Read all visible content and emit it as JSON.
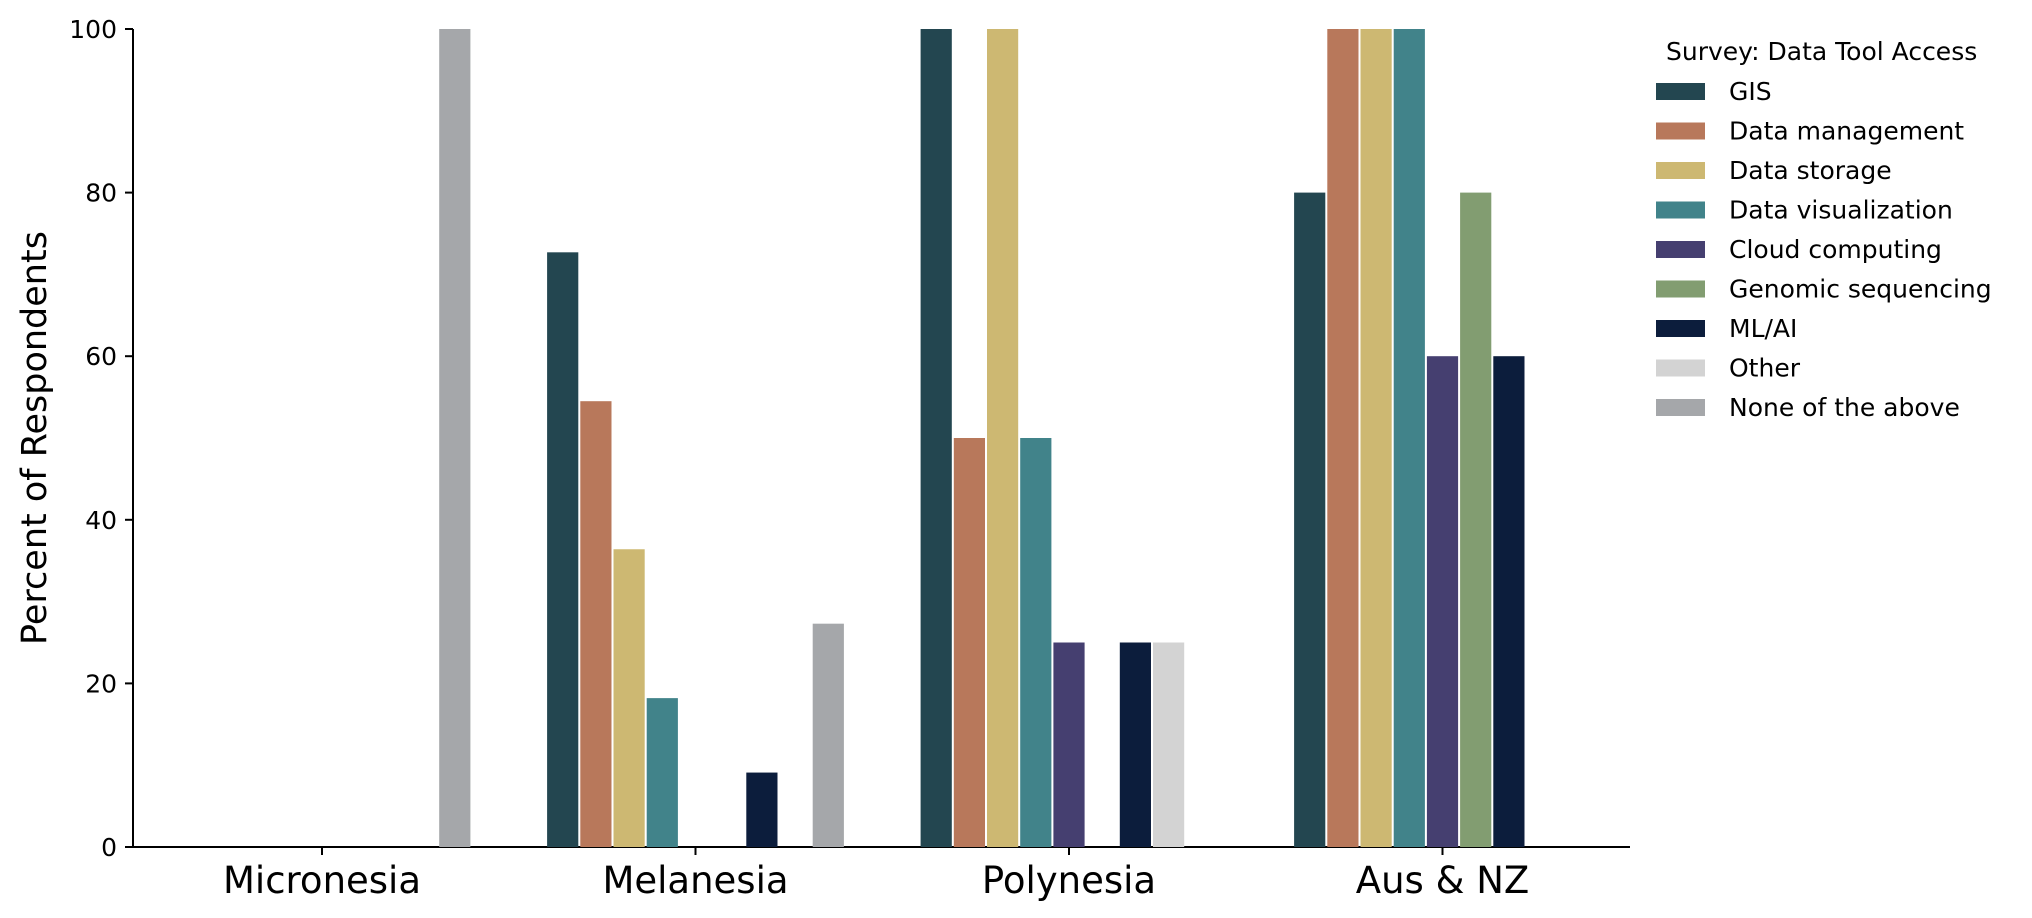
{
  "chart_data": {
    "type": "bar",
    "ylabel": "Percent of Respondents",
    "xlabel": "",
    "ylim": [
      0,
      100
    ],
    "yticks": [
      0,
      20,
      40,
      60,
      80,
      100
    ],
    "grid": false,
    "legend_title": "Survey: Data Tool Access",
    "legend_position": "top-right, outside plot",
    "categories": [
      "Micronesia",
      "Melanesia",
      "Polynesia",
      "Aus & NZ"
    ],
    "series": [
      {
        "name": "GIS",
        "color": "#234650",
        "values": [
          0,
          72.7,
          100,
          80
        ]
      },
      {
        "name": "Data management",
        "color": "#b8785b",
        "values": [
          0,
          54.5,
          50,
          100
        ]
      },
      {
        "name": "Data storage",
        "color": "#cdb872",
        "values": [
          0,
          36.4,
          100,
          100
        ]
      },
      {
        "name": "Data visualization",
        "color": "#41838a",
        "values": [
          0,
          18.2,
          50,
          100
        ]
      },
      {
        "name": "Cloud computing",
        "color": "#453f70",
        "values": [
          0,
          0,
          25,
          60
        ]
      },
      {
        "name": "Genomic sequencing",
        "color": "#829d71",
        "values": [
          0,
          0,
          0,
          80
        ]
      },
      {
        "name": "ML/AI",
        "color": "#0c1d3c",
        "values": [
          0,
          9.1,
          25,
          60
        ]
      },
      {
        "name": "Other",
        "color": "#d3d3d3",
        "values": [
          0,
          0,
          25,
          0
        ]
      },
      {
        "name": "None of the above",
        "color": "#a5a7aa",
        "values": [
          100,
          27.3,
          0,
          0
        ]
      }
    ]
  }
}
